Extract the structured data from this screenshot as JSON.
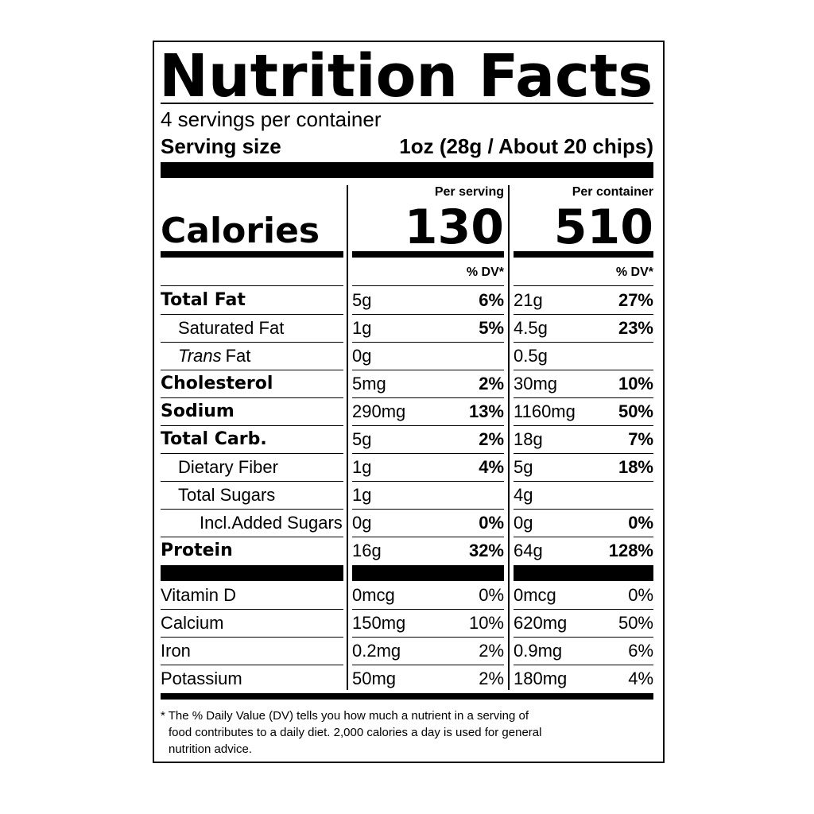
{
  "label": {
    "title": "Nutrition Facts",
    "servings": "4 servings per container",
    "serving_size_label": "Serving size",
    "serving_size": "1oz (28g / About 20 chips)",
    "calories_label": "Calories",
    "columns": [
      {
        "heading": "Per serving",
        "calories": "130",
        "dv_heading": "% DV*"
      },
      {
        "heading": "Per container",
        "calories": "510",
        "dv_heading": "% DV*"
      }
    ],
    "nutrients": [
      {
        "name": "Total Fat",
        "amounts": [
          {
            "amount": "5g",
            "dv": "6%"
          },
          {
            "amount": "21g",
            "dv": "27%"
          }
        ],
        "sub": [
          {
            "name": "Saturated Fat",
            "amounts": [
              {
                "amount": "1g",
                "dv": "5%"
              },
              {
                "amount": "4.5g",
                "dv": "23%"
              }
            ]
          },
          {
            "name_italic": "Trans",
            "name": "Fat",
            "amounts": [
              {
                "amount": "0g"
              },
              {
                "amount": "0.5g"
              }
            ]
          }
        ]
      },
      {
        "name": "Cholesterol",
        "amounts": [
          {
            "amount": "5mg",
            "dv": "2%"
          },
          {
            "amount": "30mg",
            "dv": "10%"
          }
        ]
      },
      {
        "name": "Sodium",
        "amounts": [
          {
            "amount": "290mg",
            "dv": "13%"
          },
          {
            "amount": "1160mg",
            "dv": "50%"
          }
        ]
      },
      {
        "name": "Total Carb.",
        "amounts": [
          {
            "amount": "5g",
            "dv": "2%"
          },
          {
            "amount": "18g",
            "dv": "7%"
          }
        ],
        "sub": [
          {
            "name": "Dietary Fiber",
            "amounts": [
              {
                "amount": "1g",
                "dv": "4%"
              },
              {
                "amount": "5g",
                "dv": "18%"
              }
            ]
          },
          {
            "name": "Total Sugars",
            "amounts": [
              {
                "amount": "1g"
              },
              {
                "amount": "4g"
              }
            ],
            "sub": [
              {
                "name": "Incl.Added Sugars",
                "amounts": [
                  {
                    "amount": "0g",
                    "dv": "0%"
                  },
                  {
                    "amount": "0g",
                    "dv": "0%"
                  }
                ]
              }
            ]
          }
        ]
      },
      {
        "name": "Protein",
        "amounts": [
          {
            "amount": "16g",
            "dv": "32%"
          },
          {
            "amount": "64g",
            "dv": "128%"
          }
        ]
      }
    ],
    "vitamins": [
      {
        "name": "Vitamin D",
        "amounts": [
          {
            "amount": "0mcg",
            "dv": "0%"
          },
          {
            "amount": "0mcg",
            "dv": "0%"
          }
        ]
      },
      {
        "name": "Calcium",
        "amounts": [
          {
            "amount": "150mg",
            "dv": "10%"
          },
          {
            "amount": "620mg",
            "dv": "50%"
          }
        ]
      },
      {
        "name": "Iron",
        "amounts": [
          {
            "amount": "0.2mg",
            "dv": "2%"
          },
          {
            "amount": "0.9mg",
            "dv": "6%"
          }
        ]
      },
      {
        "name": "Potassium",
        "amounts": [
          {
            "amount": "50mg",
            "dv": "2%"
          },
          {
            "amount": "180mg",
            "dv": "4%"
          }
        ]
      }
    ],
    "footnote": [
      "* The % Daily Value (DV) tells you how much a nutrient in a serving of",
      "food contributes to a daily diet. 2,000 calories a day is used for general",
      "nutrition advice."
    ]
  }
}
